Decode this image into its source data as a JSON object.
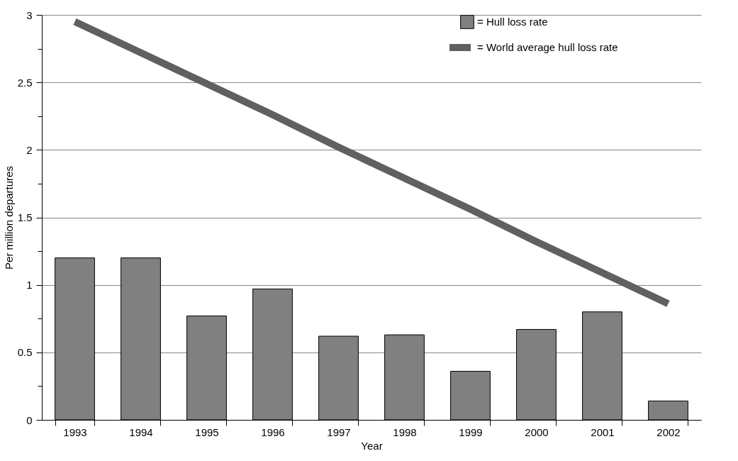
{
  "chart_data": {
    "type": "bar",
    "xlabel": "Year",
    "ylabel": "Per million departures",
    "categories": [
      "1993",
      "1994",
      "1995",
      "1996",
      "1997",
      "1998",
      "1999",
      "2000",
      "2001",
      "2002"
    ],
    "series": [
      {
        "name": "= Hull loss rate",
        "color": "#808080",
        "values": [
          1.2,
          1.2,
          0.77,
          0.97,
          0.62,
          0.63,
          0.36,
          0.67,
          0.8,
          0.14
        ]
      },
      {
        "name": "= World average hull loss rate",
        "type": "line",
        "color": "#606060",
        "values": [
          2.95,
          2.72,
          2.49,
          2.26,
          2.02,
          1.79,
          1.56,
          1.32,
          1.09,
          0.86
        ]
      }
    ],
    "ylim": [
      0,
      3
    ],
    "yticks": [
      0,
      {
        "value": 0.25,
        "label": null
      },
      0.5,
      {
        "value": 0.75,
        "label": null
      },
      1,
      {
        "value": 1.25,
        "label": null
      },
      1.5,
      {
        "value": 1.75,
        "label": null
      },
      2,
      {
        "value": 2.25,
        "label": null
      },
      2.5,
      {
        "value": 2.75,
        "label": null
      },
      3
    ],
    "grid": "y",
    "legend": "top right"
  }
}
